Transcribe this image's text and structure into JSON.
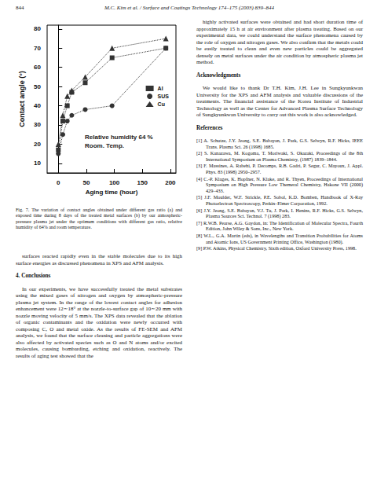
{
  "header": {
    "page": "844",
    "running_title": "M.C. Kim et al. / Surface and Coatings Technology 174–175 (2003) 839–844"
  },
  "chart_data": {
    "type": "line",
    "x_label": "Aging time (hour)",
    "y_label": "Contact angle (°)",
    "annotations": [
      "Relative humidity 64 %",
      "Room. Temp."
    ],
    "x": [
      0,
      8,
      16,
      24,
      48,
      96,
      192
    ],
    "series": [
      {
        "name": "Al",
        "color": "#333333",
        "marker": "square",
        "line_style": "dotted",
        "values": [
          17,
          32,
          40,
          47,
          52,
          65,
          70
        ]
      },
      {
        "name": "SUS",
        "color": "#333333",
        "marker": "circle",
        "line_style": "dotted",
        "values": [
          15,
          25,
          32,
          35,
          38,
          40,
          70
        ]
      },
      {
        "name": "Cu",
        "color": "#333333",
        "marker": "triangle",
        "line_style": "dotted",
        "values": [
          20,
          35,
          45,
          48,
          55,
          70,
          75
        ]
      }
    ],
    "xlim": [
      -20,
      210
    ],
    "xticks": [
      0,
      50,
      100,
      150,
      200
    ],
    "ylim": [
      5,
      82
    ],
    "yticks": [
      10,
      20,
      30,
      40,
      50,
      60,
      70,
      80
    ],
    "grid": false,
    "legend": "right"
  },
  "figure_caption": "Fig. 7. The variation of contact angles obtained under different gas ratio (a) and exposed time during 8 days of the treated metal surfaces (b) by our atmospheric-pressure plasma jet under the optimum conditions with different gas ratio, relative humidity of 64% and room temperature.",
  "left_column": [
    {
      "kind": "p",
      "text": "surfaces reacted rapidly even in the stable molecules due to its high surface energies as discussed phenomena in XPS and AFM analysis."
    },
    {
      "kind": "h",
      "text": "4. Conclusions"
    },
    {
      "kind": "p",
      "text": "In our experiments, we have successfully treated the metal substrates using the mixed gases of nitrogen and oxygen by atmospheric-pressure plasma jet system. In the range of the lowest contact angles for adhesion enhancement were 12∼18° at the nozzle-to-surface gap of 10∼20 mm with nozzle moving velocity of 5 mm/s. The XPS data revealed that the ablation of organic contaminants and the oxidation were newly occurred with composing C, O and metal oxide. As the results of FE-SEM and AFM analysis, we found that the surface cleaning and particle aggregations were also affected by activated species such as O and N atoms and/or excited molecules, causing bombarding, etching and oxidation, reactively. The results of aging test showed that the"
    }
  ],
  "right_column": [
    {
      "kind": "p",
      "text": "highly activated surfaces were obtained and had short duration time of approximately 15 h at air environment after plasma treating. Based on our experimental data, we could understand the surface phenomena caused by the role of oxygen and nitrogen gases. We also confirm that the metals could be easily treated to clean and even new particles could be aggregated densely on metal surfaces under the air condition by atmospheric plasma jet method."
    },
    {
      "kind": "h",
      "text": "Acknowledgments"
    },
    {
      "kind": "p",
      "text": "We would like to thank Dr T.H. Kim, J.H. Lee in Sungkyunkwan University for the XPS and AFM analysis and valuable discussions of the treatments. The financial assistance of the Korea Institute of Industrial Technology as well as the Center for Advanced Plasma Surface Technology of Sungkyunkwan University to carry out this work is also acknowledged."
    }
  ],
  "references": {
    "heading": "References",
    "items": [
      "[1] A. Schutze, J.Y. Jeong, S.E. Babayan, J. Park, G.S. Selwyn, R.F. Hicks, IEEE Trans. Plasma Sci. 26 (1998) 1685.",
      "[2] S. Kanazawa, M. Kogoma, T. Moriwaki, S. Okazaki, Proceedings of the 8th International Symposium on Plasma Chemistry, (1987) 1839–1844.",
      "[3] F. Massines, A. Rabehi, P. Decomps, R.B. Gadri, P. Segur, C. Mayoux, J. Appl. Phys. 83 (1998) 2950–2957.",
      "[4] C.-P. Klages, K. Hopfner, N. Klake, and R. Thyen, Proceedings of International Symposium on High Pressure Low Themeral Chemistry, Hakone VII (2000) 429–433.",
      "[5] J.F. Moulder, W.F. Strickle, P.E. Sobol, K.D. Bomben, Handbook of X-Ray Photoelectron Spectroscopy, Perkin–Elmer Corporation, 1992.",
      "[6] J.Y. Jeong, S.E. Babayan, V.J. Tu, J. Park, I. Henins, R.F. Hicks, G.S. Selwyn, Plasma Sources Sci. Technol. 7 (1998) 283.",
      "[7] R.W.B. Pearse, A.G. Gaydon, in: The Identification of Molecular Spectra, Fourth Edition, John Wiley & Sons, Inc., New York.",
      "[8] W.L., G.A. Martin (eds), in Wavelengths and Transition Probabilities for Atoms and Atomic Ions, US Government Printing Office, Washington (1980).",
      "[9] P.W. Atkins, Physical Chemistry, Sixth edition, Oxford University Press, 1998."
    ]
  }
}
